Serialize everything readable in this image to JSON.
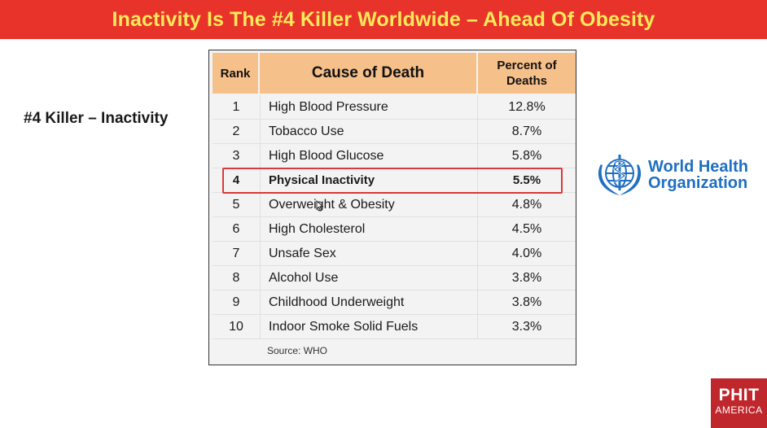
{
  "title": "Inactivity Is The #4 Killer Worldwide – Ahead Of Obesity",
  "left_label": "#4 Killer – Inactivity",
  "table": {
    "headers": {
      "rank": "Rank",
      "cause": "Cause of Death",
      "percent_line1": "Percent of",
      "percent_line2": "Deaths"
    },
    "rows": [
      {
        "rank": "1",
        "cause": "High Blood Pressure",
        "percent": "12.8%"
      },
      {
        "rank": "2",
        "cause": "Tobacco Use",
        "percent": "8.7%"
      },
      {
        "rank": "3",
        "cause": "High Blood Glucose",
        "percent": "5.8%"
      },
      {
        "rank": "4",
        "cause": "Physical Inactivity",
        "percent": "5.5%"
      },
      {
        "rank": "5",
        "cause": "Overweight & Obesity",
        "percent": "4.8%"
      },
      {
        "rank": "6",
        "cause": "High Cholesterol",
        "percent": "4.5%"
      },
      {
        "rank": "7",
        "cause": "Unsafe Sex",
        "percent": "4.0%"
      },
      {
        "rank": "8",
        "cause": "Alcohol Use",
        "percent": "3.8%"
      },
      {
        "rank": "9",
        "cause": "Childhood Underweight",
        "percent": "3.8%"
      },
      {
        "rank": "10",
        "cause": "Indoor Smoke Solid Fuels",
        "percent": "3.3%"
      }
    ],
    "highlighted_rank": "4",
    "source": "Source: WHO"
  },
  "who_logo": {
    "line1": "World Health",
    "line2": "Organization",
    "icon": "who-emblem-icon"
  },
  "phit_logo": {
    "line1": "PHIT",
    "line2": "AMERICA"
  },
  "colors": {
    "title_bg": "#e8332a",
    "title_text": "#fde95a",
    "header_bg": "#f6c08a",
    "highlight": "#d63a3a",
    "who_blue": "#1f6fc2",
    "phit_red": "#c0272d"
  }
}
